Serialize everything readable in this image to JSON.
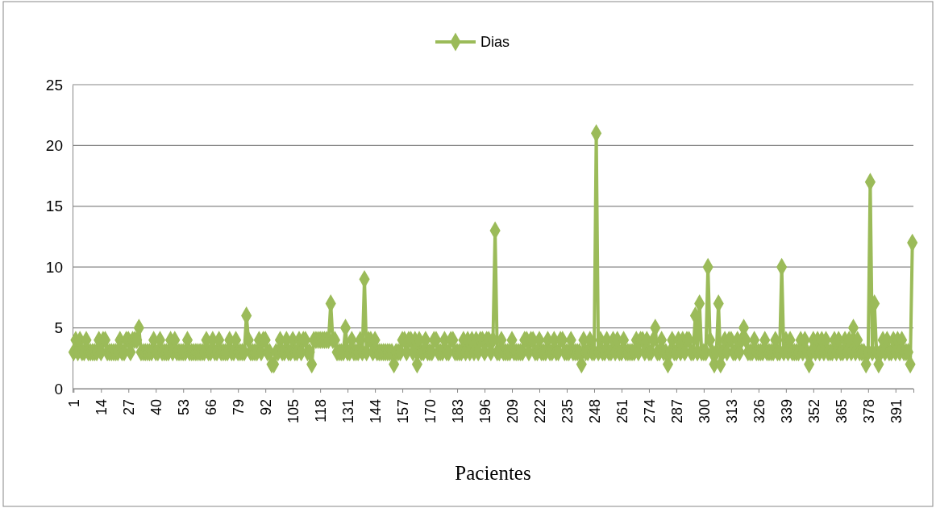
{
  "chart_data": {
    "type": "line",
    "xlabel": "Pacientes",
    "legend": "top",
    "grid": "y",
    "marker": "diamond",
    "line_style": "solid",
    "xlim": [
      0.5,
      399.5
    ],
    "xticks": [
      1,
      14,
      27,
      40,
      53,
      66,
      79,
      92,
      105,
      118,
      131,
      144,
      157,
      170,
      183,
      196,
      209,
      222,
      235,
      248,
      261,
      274,
      287,
      300,
      313,
      326,
      339,
      352,
      365,
      378,
      391
    ],
    "ylim": [
      0,
      25
    ],
    "yticks": [
      0,
      5,
      10,
      15,
      20,
      25
    ],
    "x": [
      1,
      2,
      3,
      4,
      5,
      6,
      7,
      8,
      9,
      10,
      11,
      12,
      13,
      14,
      15,
      16,
      17,
      18,
      19,
      20,
      21,
      22,
      23,
      24,
      25,
      26,
      27,
      28,
      29,
      30,
      31,
      32,
      33,
      34,
      35,
      36,
      37,
      38,
      39,
      40,
      41,
      42,
      43,
      44,
      45,
      46,
      47,
      48,
      49,
      50,
      51,
      52,
      53,
      54,
      55,
      56,
      57,
      58,
      59,
      60,
      61,
      62,
      63,
      64,
      65,
      66,
      67,
      68,
      69,
      70,
      71,
      72,
      73,
      74,
      75,
      76,
      77,
      78,
      79,
      80,
      81,
      82,
      83,
      84,
      85,
      86,
      87,
      88,
      89,
      90,
      91,
      92,
      93,
      94,
      95,
      96,
      97,
      98,
      99,
      100,
      101,
      102,
      103,
      104,
      105,
      106,
      107,
      108,
      109,
      110,
      111,
      112,
      113,
      114,
      115,
      116,
      117,
      118,
      119,
      120,
      121,
      122,
      123,
      124,
      125,
      126,
      127,
      128,
      129,
      130,
      131,
      132,
      133,
      134,
      135,
      136,
      137,
      138,
      139,
      140,
      141,
      142,
      143,
      144,
      145,
      146,
      147,
      148,
      149,
      150,
      151,
      152,
      153,
      154,
      155,
      156,
      157,
      158,
      159,
      160,
      161,
      162,
      163,
      164,
      165,
      166,
      167,
      168,
      169,
      170,
      171,
      172,
      173,
      174,
      175,
      176,
      177,
      178,
      179,
      180,
      181,
      182,
      183,
      184,
      185,
      186,
      187,
      188,
      189,
      190,
      191,
      192,
      193,
      194,
      195,
      196,
      197,
      198,
      199,
      200,
      201,
      202,
      203,
      204,
      205,
      206,
      207,
      208,
      209,
      210,
      211,
      212,
      213,
      214,
      215,
      216,
      217,
      218,
      219,
      220,
      221,
      222,
      223,
      224,
      225,
      226,
      227,
      228,
      229,
      230,
      231,
      232,
      233,
      234,
      235,
      236,
      237,
      238,
      239,
      240,
      241,
      242,
      243,
      244,
      245,
      246,
      247,
      248,
      249,
      250,
      251,
      252,
      253,
      254,
      255,
      256,
      257,
      258,
      259,
      260,
      261,
      262,
      263,
      264,
      265,
      266,
      267,
      268,
      269,
      270,
      271,
      272,
      273,
      274,
      275,
      276,
      277,
      278,
      279,
      280,
      281,
      282,
      283,
      284,
      285,
      286,
      287,
      288,
      289,
      290,
      291,
      292,
      293,
      294,
      295,
      296,
      297,
      298,
      299,
      300,
      301,
      302,
      303,
      304,
      305,
      306,
      307,
      308,
      309,
      310,
      311,
      312,
      313,
      314,
      315,
      316,
      317,
      318,
      319,
      320,
      321,
      322,
      323,
      324,
      325,
      326,
      327,
      328,
      329,
      330,
      331,
      332,
      333,
      334,
      335,
      336,
      337,
      338,
      339,
      340,
      341,
      342,
      343,
      344,
      345,
      346,
      347,
      348,
      349,
      350,
      351,
      352,
      353,
      354,
      355,
      356,
      357,
      358,
      359,
      360,
      361,
      362,
      363,
      364,
      365,
      366,
      367,
      368,
      369,
      370,
      371,
      372,
      373,
      374,
      375,
      376,
      377,
      378,
      379,
      380,
      381,
      382,
      383,
      384,
      385,
      386,
      387,
      388,
      389,
      390,
      391,
      392,
      393,
      394,
      395,
      396,
      397,
      398,
      399
    ],
    "series": [
      {
        "name": "Dias",
        "color": "#9bbb59",
        "values": [
          3,
          4,
          3,
          4,
          3,
          3,
          4,
          3,
          3,
          3,
          3,
          3,
          4,
          3,
          4,
          4,
          3,
          3,
          3,
          3,
          3,
          3,
          4,
          3,
          3,
          4,
          4,
          3,
          4,
          4,
          4,
          5,
          3,
          3,
          3,
          3,
          3,
          3,
          4,
          3,
          3,
          4,
          3,
          3,
          3,
          3,
          4,
          3,
          4,
          3,
          3,
          3,
          3,
          3,
          4,
          3,
          3,
          3,
          3,
          3,
          3,
          3,
          3,
          4,
          3,
          3,
          4,
          3,
          3,
          4,
          3,
          3,
          3,
          3,
          4,
          3,
          3,
          4,
          3,
          3,
          3,
          3,
          6,
          4,
          3,
          3,
          3,
          3,
          4,
          3,
          4,
          4,
          3,
          3,
          2,
          2,
          3,
          3,
          4,
          3,
          3,
          4,
          3,
          3,
          4,
          3,
          3,
          4,
          3,
          4,
          4,
          3,
          3,
          2,
          4,
          4,
          4,
          4,
          4,
          4,
          4,
          4,
          7,
          4,
          4,
          3,
          3,
          3,
          3,
          5,
          3,
          3,
          4,
          3,
          3,
          3,
          4,
          3,
          9,
          3,
          4,
          4,
          3,
          4,
          3,
          3,
          3,
          3,
          3,
          3,
          3,
          3,
          2,
          3,
          3,
          3,
          4,
          4,
          3,
          4,
          4,
          3,
          4,
          2,
          4,
          3,
          3,
          4,
          3,
          3,
          3,
          4,
          4,
          3,
          3,
          3,
          4,
          3,
          3,
          4,
          4,
          3,
          3,
          3,
          3,
          4,
          3,
          4,
          3,
          4,
          3,
          4,
          3,
          4,
          4,
          3,
          4,
          4,
          3,
          4,
          13,
          3,
          3,
          4,
          3,
          3,
          3,
          3,
          4,
          3,
          3,
          3,
          3,
          3,
          4,
          4,
          3,
          4,
          4,
          3,
          3,
          4,
          3,
          3,
          3,
          4,
          3,
          3,
          4,
          3,
          3,
          4,
          4,
          3,
          3,
          3,
          4,
          3,
          3,
          3,
          3,
          2,
          4,
          3,
          3,
          4,
          3,
          3,
          21,
          3,
          4,
          3,
          3,
          4,
          3,
          3,
          4,
          3,
          4,
          3,
          3,
          4,
          3,
          3,
          3,
          3,
          3,
          4,
          3,
          4,
          4,
          3,
          4,
          3,
          3,
          4,
          5,
          3,
          3,
          4,
          3,
          3,
          2,
          3,
          4,
          3,
          3,
          4,
          3,
          4,
          3,
          4,
          4,
          3,
          3,
          6,
          3,
          7,
          3,
          3,
          3,
          10,
          4,
          3,
          2,
          3,
          7,
          2,
          3,
          4,
          3,
          4,
          4,
          3,
          3,
          4,
          3,
          4,
          5,
          4,
          3,
          3,
          3,
          4,
          3,
          3,
          3,
          3,
          4,
          3,
          3,
          3,
          3,
          4,
          3,
          3,
          10,
          3,
          4,
          3,
          4,
          3,
          3,
          3,
          3,
          4,
          3,
          4,
          3,
          2,
          3,
          4,
          3,
          4,
          3,
          4,
          3,
          4,
          3,
          3,
          3,
          4,
          3,
          4,
          3,
          3,
          4,
          3,
          4,
          3,
          5,
          3,
          4,
          3,
          3,
          3,
          2,
          3,
          17,
          3,
          7,
          3,
          2,
          3,
          4,
          3,
          4,
          3,
          3,
          4,
          3,
          4,
          3,
          4,
          3,
          3,
          3,
          2,
          12
        ]
      }
    ]
  }
}
